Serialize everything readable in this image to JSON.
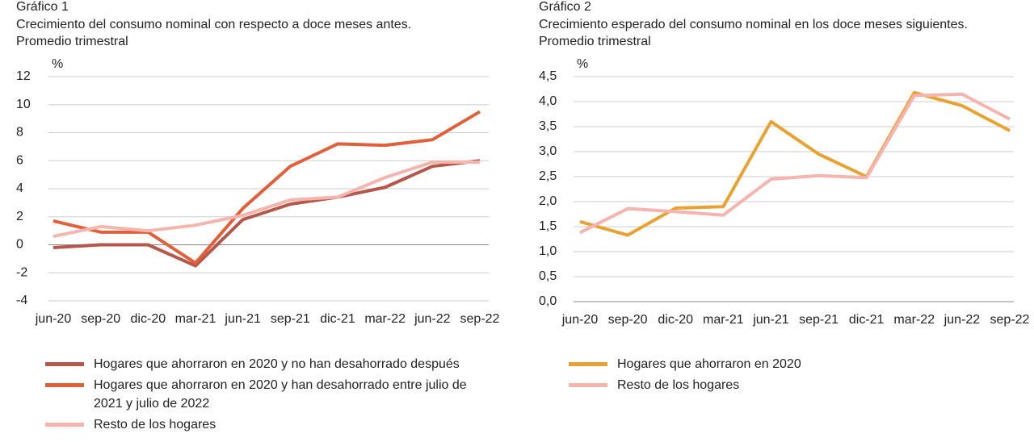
{
  "chart_data": [
    {
      "type": "line",
      "title": "Gráfico 1",
      "subtitle": [
        "Crecimiento del consumo nominal con respecto a doce meses antes.",
        "Promedio trimestral"
      ],
      "y_label": "%",
      "categories": [
        "jun-20",
        "sep-20",
        "dic-20",
        "mar-21",
        "jun-21",
        "sep-21",
        "dic-21",
        "mar-22",
        "jun-22",
        "sep-22"
      ],
      "ylim": [
        -4,
        12
      ],
      "yticks": [
        -4,
        -2,
        0,
        2,
        4,
        6,
        8,
        10,
        12
      ],
      "grid": true,
      "series": [
        {
          "name": "Hogares que ahorraron en 2020 y no han desahorrado después",
          "color": "#b5574a",
          "values": [
            -0.2,
            0,
            0,
            -1.5,
            1.8,
            2.9,
            3.4,
            4.1,
            5.6,
            6.0
          ]
        },
        {
          "name": "Hogares que ahorraron en 2020 y han desahorrado entre julio de 2021 y julio de 2022",
          "color": "#e0603a",
          "values": [
            1.7,
            0.9,
            0.9,
            -1.3,
            2.6,
            5.6,
            7.2,
            7.1,
            7.5,
            9.5
          ]
        },
        {
          "name": "Resto de los hogares",
          "color": "#f5b5ae",
          "values": [
            0.6,
            1.3,
            1.0,
            1.4,
            2.1,
            3.2,
            3.4,
            4.8,
            5.9,
            5.9
          ]
        }
      ]
    },
    {
      "type": "line",
      "title": "Gráfico 2",
      "subtitle": [
        "Crecimiento esperado del consumo nominal en los doce meses siguientes.",
        "Promedio trimestral"
      ],
      "y_label": "%",
      "categories": [
        "jun-20",
        "sep-20",
        "dic-20",
        "mar-21",
        "jun-21",
        "sep-21",
        "dic-21",
        "mar-22",
        "jun-22",
        "sep-22"
      ],
      "ylim": [
        0,
        4.5
      ],
      "yticks": [
        {
          "value": 0,
          "label": "0,0"
        },
        {
          "value": 0.5,
          "label": "0,5"
        },
        {
          "value": 1,
          "label": "1,0"
        },
        {
          "value": 1.5,
          "label": "1,5"
        },
        {
          "value": 2,
          "label": "2,0"
        },
        {
          "value": 2.5,
          "label": "2,5"
        },
        {
          "value": 3,
          "label": "3,0"
        },
        {
          "value": 3.5,
          "label": "3,5"
        },
        {
          "value": 4,
          "label": "4,0"
        },
        {
          "value": 4.5,
          "label": "4,5"
        }
      ],
      "grid": true,
      "series": [
        {
          "name": "Hogares que ahorraron en 2020",
          "color": "#e8a232",
          "values": [
            1.6,
            1.33,
            1.87,
            1.9,
            3.6,
            2.95,
            2.5,
            4.18,
            3.92,
            3.42
          ]
        },
        {
          "name": "Resto de los hogares",
          "color": "#f5b5ae",
          "values": [
            1.38,
            1.86,
            1.8,
            1.73,
            2.45,
            2.52,
            2.48,
            4.12,
            4.15,
            3.65
          ]
        }
      ]
    }
  ]
}
